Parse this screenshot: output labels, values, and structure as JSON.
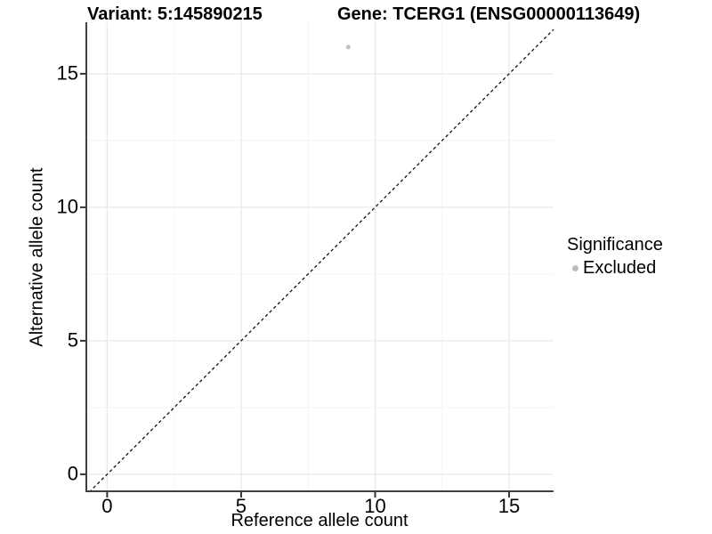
{
  "chart_data": {
    "type": "scatter",
    "titles": {
      "left": "Variant: 5:145890215",
      "right": "Gene: TCERG1 (ENSG00000113649)"
    },
    "xlabel": "Reference allele count",
    "ylabel": "Alternative allele count",
    "xlim": [
      -0.81,
      16.66
    ],
    "ylim": [
      -0.67,
      16.93
    ],
    "xticks": [
      0,
      5,
      10,
      15
    ],
    "yticks": [
      0,
      5,
      10,
      15
    ],
    "minor_xticks": [
      2.5,
      7.5,
      12.5
    ],
    "minor_yticks": [
      2.5,
      7.5,
      12.5
    ],
    "grid": {
      "major_color": "#e9e9e9",
      "minor_color": "#f4f4f4"
    },
    "axis": {
      "line_color": "#404040",
      "tick_color": "#333333",
      "tick_length": 6
    },
    "reference_line": {
      "slope": 1,
      "intercept": 0,
      "style": "dashed",
      "color": "#111111"
    },
    "series": [
      {
        "name": "Excluded",
        "color": "#c1c1c1",
        "marker_radius": 2.5,
        "points": [
          {
            "x": 9,
            "y": 16
          }
        ]
      }
    ],
    "legend": {
      "title": "Significance",
      "position": "right",
      "items": [
        {
          "label": "Excluded",
          "color": "#bdbdbd"
        }
      ]
    }
  }
}
